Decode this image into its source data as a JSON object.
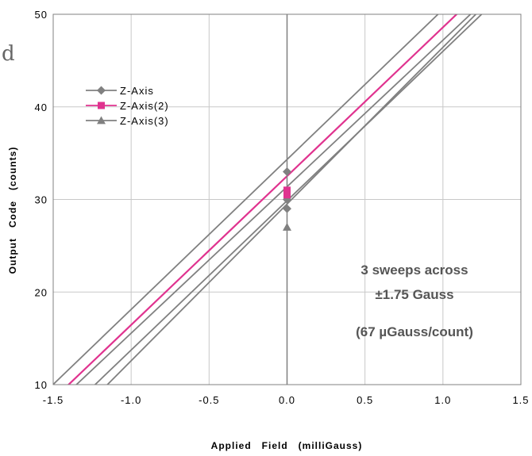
{
  "chart_data": {
    "type": "line",
    "xlabel": "Applied   Field   (milliGauss)",
    "ylabel": "Output   Code   (counts)",
    "xlim": [
      -1.5,
      1.5
    ],
    "ylim": [
      10,
      50
    ],
    "x_ticks": [
      "-1.5",
      "-1.0",
      "-0.5",
      "0.0",
      "0.5",
      "1.0",
      "1.5"
    ],
    "y_ticks": [
      "10",
      "20",
      "30",
      "40",
      "50"
    ],
    "grid": true,
    "legend_position": "top-left",
    "series": [
      {
        "name": "Z-Axis",
        "color": "#808080",
        "marker": "diamond",
        "x": [
          0.0,
          0.0,
          0.0
        ],
        "y": [
          33,
          30,
          29
        ],
        "lines": [
          {
            "x": [
              -1.52,
              1.03
            ],
            "y": [
              9.7,
              51
            ]
          },
          {
            "x": [
              -1.37,
              1.24
            ],
            "y": [
              9.7,
              51
            ]
          }
        ]
      },
      {
        "name": "Z-Axis(2)",
        "color": "#e0338f",
        "marker": "square",
        "x": [
          0.0,
          0.0
        ],
        "y": [
          31,
          30.5
        ],
        "lines": [
          {
            "x": [
              -1.42,
              1.15
            ],
            "y": [
              9.7,
              51
            ]
          }
        ]
      },
      {
        "name": "Z-Axis(3)",
        "color": "#808080",
        "marker": "triangle",
        "x": [
          0.0
        ],
        "y": [
          27
        ],
        "lines": [
          {
            "x": [
              -1.17,
              1.27
            ],
            "y": [
              9.7,
              51
            ]
          },
          {
            "x": [
              -1.25,
              1.31
            ],
            "y": [
              9.7,
              51
            ]
          }
        ]
      }
    ],
    "annotations": [
      "3 sweeps across",
      "±1.75 Gauss",
      "(67 µGauss/count)"
    ],
    "edge_text": "d"
  }
}
